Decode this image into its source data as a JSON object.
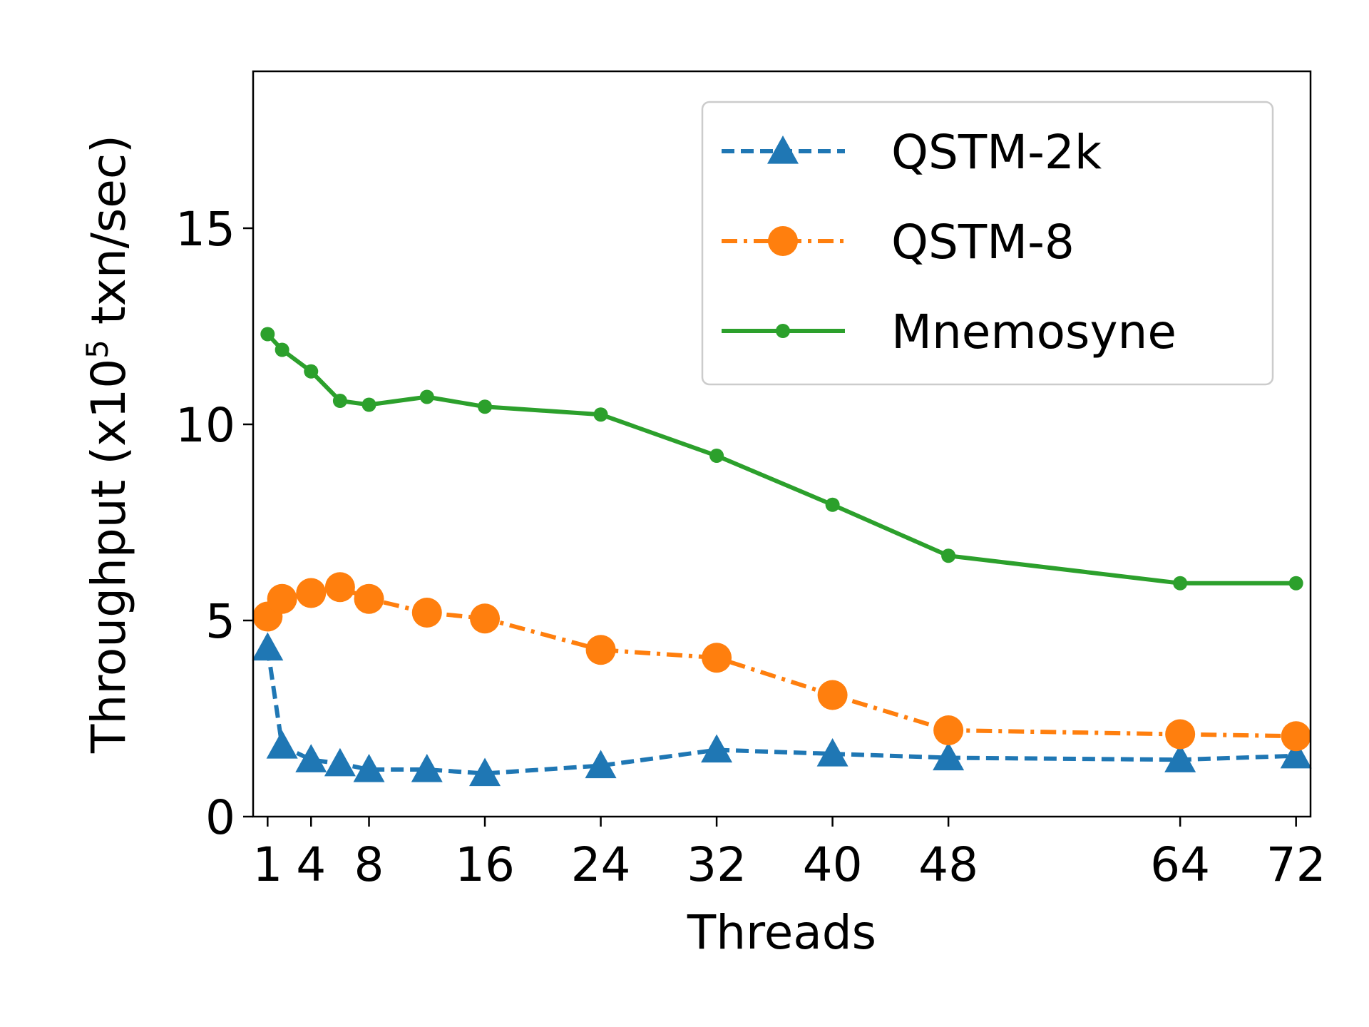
{
  "chart_data": {
    "type": "line",
    "xlabel": "Threads",
    "ylabel": "Throughput (x10",
    "ylabel_exponent": "5",
    "ylabel_unit": " txn/sec)",
    "xticks": [
      1,
      4,
      8,
      16,
      24,
      32,
      40,
      48,
      64,
      72
    ],
    "xtick_labels": [
      "1",
      "4",
      "8",
      "16",
      "24",
      "32",
      "40",
      "48",
      "64",
      "72"
    ],
    "yticks": [
      0,
      5,
      10,
      15
    ],
    "ytick_labels": [
      "0",
      "5",
      "10",
      "15"
    ],
    "xlim": [
      0,
      73
    ],
    "ylim": [
      0,
      19
    ],
    "grid": false,
    "legend_position": "top-right",
    "x": [
      1,
      2,
      4,
      6,
      8,
      12,
      16,
      24,
      32,
      40,
      48,
      64,
      72
    ],
    "series": [
      {
        "name": "QSTM-2k",
        "color": "#1f77b4",
        "marker": "triangle",
        "linestyle": "dashed",
        "values": [
          4.3,
          1.8,
          1.45,
          1.35,
          1.2,
          1.2,
          1.1,
          1.3,
          1.7,
          1.6,
          1.5,
          1.45,
          1.55
        ]
      },
      {
        "name": "QSTM-8",
        "color": "#ff7f0e",
        "marker": "circle-large",
        "linestyle": "dashdot",
        "values": [
          5.1,
          5.55,
          5.7,
          5.85,
          5.55,
          5.2,
          5.05,
          4.25,
          4.05,
          3.1,
          2.2,
          2.1,
          2.05
        ]
      },
      {
        "name": "Mnemosyne",
        "color": "#2ca02c",
        "marker": "circle-small",
        "linestyle": "solid",
        "values": [
          12.3,
          11.9,
          11.35,
          10.6,
          10.5,
          10.7,
          10.45,
          10.25,
          9.2,
          7.95,
          6.65,
          5.95,
          5.95
        ]
      }
    ]
  }
}
